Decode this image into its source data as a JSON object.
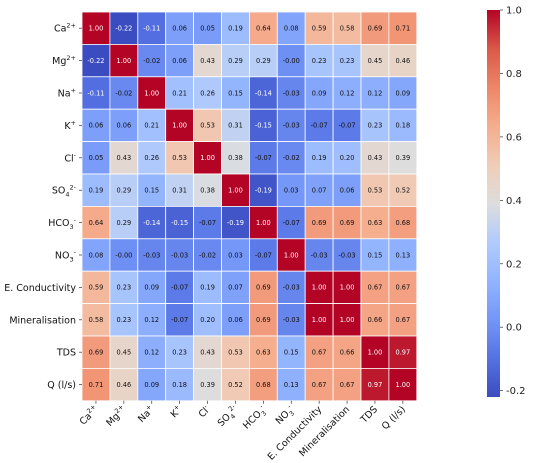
{
  "chart_data": {
    "type": "heatmap",
    "title": "",
    "xlabel": "",
    "ylabel": "",
    "variables": [
      {
        "base": "Ca",
        "sup": "2+",
        "sub": ""
      },
      {
        "base": "Mg",
        "sup": "2+",
        "sub": ""
      },
      {
        "base": "Na",
        "sup": "+",
        "sub": ""
      },
      {
        "base": "K",
        "sup": "+",
        "sub": ""
      },
      {
        "base": "Cl",
        "sup": "-",
        "sub": ""
      },
      {
        "base": "SO",
        "sup": "2-",
        "sub": "4"
      },
      {
        "base": "HCO",
        "sup": "-",
        "sub": "3"
      },
      {
        "base": "NO",
        "sup": "-",
        "sub": "3"
      },
      {
        "base": "E. Conductivity",
        "sup": "",
        "sub": ""
      },
      {
        "base": "Mineralisation",
        "sup": "",
        "sub": ""
      },
      {
        "base": "TDS",
        "sup": "",
        "sub": ""
      },
      {
        "base": "Q (l/s)",
        "sup": "",
        "sub": ""
      }
    ],
    "values": [
      [
        1.0,
        -0.22,
        -0.11,
        0.06,
        0.05,
        0.19,
        0.64,
        0.08,
        0.59,
        0.58,
        0.69,
        0.71
      ],
      [
        -0.22,
        1.0,
        -0.02,
        0.06,
        0.43,
        0.29,
        0.29,
        -0.0,
        0.23,
        0.23,
        0.45,
        0.46
      ],
      [
        -0.11,
        -0.02,
        1.0,
        0.21,
        0.26,
        0.15,
        -0.14,
        -0.03,
        0.09,
        0.12,
        0.12,
        0.09
      ],
      [
        0.06,
        0.06,
        0.21,
        1.0,
        0.53,
        0.31,
        -0.15,
        -0.03,
        -0.07,
        -0.07,
        0.23,
        0.18
      ],
      [
        0.05,
        0.43,
        0.26,
        0.53,
        1.0,
        0.38,
        -0.07,
        -0.02,
        0.19,
        0.2,
        0.43,
        0.39
      ],
      [
        0.19,
        0.29,
        0.15,
        0.31,
        0.38,
        1.0,
        -0.19,
        0.03,
        0.07,
        0.06,
        0.53,
        0.52
      ],
      [
        0.64,
        0.29,
        -0.14,
        -0.15,
        -0.07,
        -0.19,
        1.0,
        -0.07,
        0.69,
        0.69,
        0.63,
        0.68
      ],
      [
        0.08,
        -0.0,
        -0.03,
        -0.03,
        -0.02,
        0.03,
        -0.07,
        1.0,
        -0.03,
        -0.03,
        0.15,
        0.13
      ],
      [
        0.59,
        0.23,
        0.09,
        -0.07,
        0.19,
        0.07,
        0.69,
        -0.03,
        1.0,
        1.0,
        0.67,
        0.67
      ],
      [
        0.58,
        0.23,
        0.12,
        -0.07,
        0.2,
        0.06,
        0.69,
        -0.03,
        1.0,
        1.0,
        0.66,
        0.67
      ],
      [
        0.69,
        0.45,
        0.12,
        0.23,
        0.43,
        0.53,
        0.63,
        0.15,
        0.67,
        0.66,
        1.0,
        0.97
      ],
      [
        0.71,
        0.46,
        0.09,
        0.18,
        0.39,
        0.52,
        0.68,
        0.13,
        0.67,
        0.67,
        0.97,
        1.0
      ]
    ],
    "colorbar": {
      "range": [
        -0.22,
        1.0
      ],
      "ticks": [
        "-0.2",
        "0.0",
        "0.2",
        "0.4",
        "0.6",
        "0.8",
        "1.0"
      ],
      "tick_values": [
        -0.2,
        0.0,
        0.2,
        0.4,
        0.6,
        0.8,
        1.0
      ],
      "colormap": "coolwarm",
      "colors": {
        "low": "#3b4cc0",
        "mid": "#dddddd",
        "high": "#b40426"
      }
    },
    "grid": true,
    "legend": "colorbar-right"
  }
}
